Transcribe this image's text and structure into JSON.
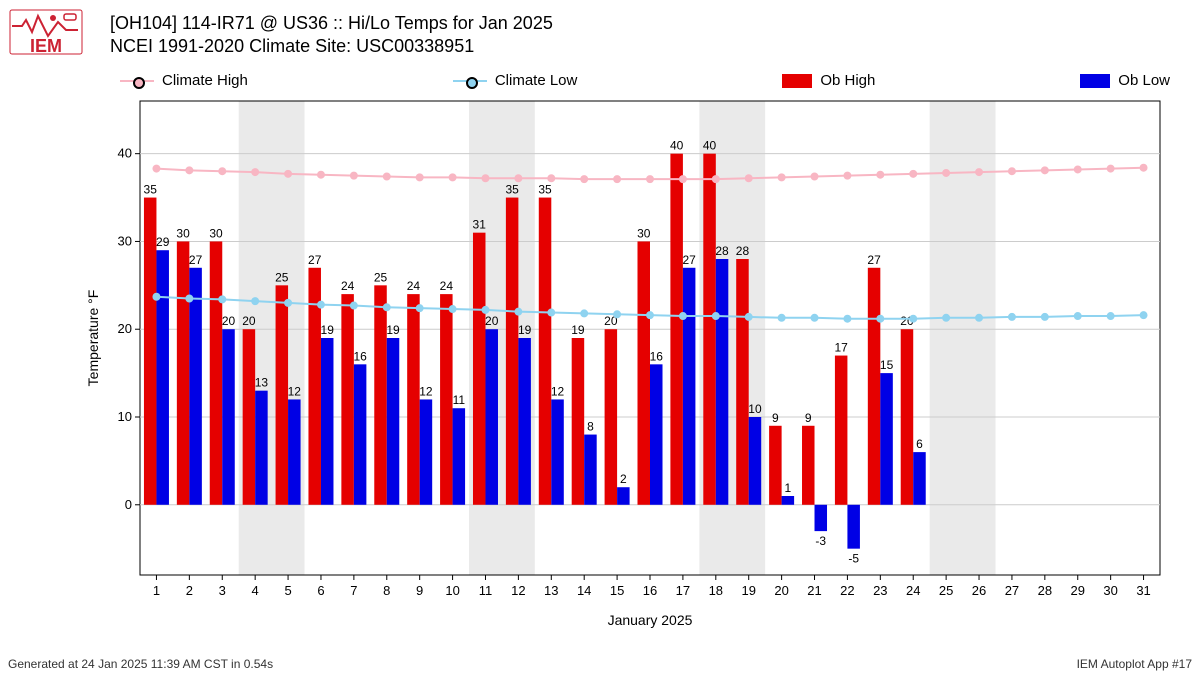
{
  "logo_text": "IEM",
  "title_line1": "[OH104] 114-IR71 @ US36 :: Hi/Lo Temps for Jan 2025",
  "title_line2": "NCEI 1991-2020 Climate Site: USC00338951",
  "footer_left": "Generated at 24 Jan 2025 11:39 AM CST in 0.54s",
  "footer_right": "IEM Autoplot App #17",
  "chart": {
    "type": "bar+line",
    "xlabel": "January 2025",
    "ylabel": "Temperature °F",
    "background_color": "#ffffff",
    "grid_color": "#cccccc",
    "weekend_band_color": "#eaeaea",
    "y": {
      "min": -8,
      "max": 46,
      "ticks": [
        0,
        10,
        20,
        30,
        40
      ]
    },
    "x": {
      "days": [
        1,
        2,
        3,
        4,
        5,
        6,
        7,
        8,
        9,
        10,
        11,
        12,
        13,
        14,
        15,
        16,
        17,
        18,
        19,
        20,
        21,
        22,
        23,
        24,
        25,
        26,
        27,
        28,
        29,
        30,
        31
      ]
    },
    "legend": {
      "climate_high": "Climate High",
      "climate_low": "Climate Low",
      "ob_high": "Ob High",
      "ob_low": "Ob Low"
    },
    "colors": {
      "climate_high": "#f8b6c3",
      "climate_low": "#8fd3f0",
      "ob_high": "#e50000",
      "ob_low": "#0000e5",
      "text": "#000000"
    },
    "bar_width": 0.38,
    "weekend_bands": [
      [
        4,
        5
      ],
      [
        11,
        12
      ],
      [
        18,
        19
      ],
      [
        25,
        26
      ]
    ],
    "data": [
      {
        "day": 1,
        "oh": 35,
        "ol": 29,
        "ch": 38.3,
        "cl": 23.7
      },
      {
        "day": 2,
        "oh": 30,
        "ol": 27,
        "ch": 38.1,
        "cl": 23.5
      },
      {
        "day": 3,
        "oh": 30,
        "ol": 20,
        "ch": 38.0,
        "cl": 23.4
      },
      {
        "day": 4,
        "oh": 20,
        "ol": 13,
        "ch": 37.9,
        "cl": 23.2
      },
      {
        "day": 5,
        "oh": 25,
        "ol": 12,
        "ch": 37.7,
        "cl": 23.0
      },
      {
        "day": 6,
        "oh": 27,
        "ol": 19,
        "ch": 37.6,
        "cl": 22.8
      },
      {
        "day": 7,
        "oh": 24,
        "ol": 16,
        "ch": 37.5,
        "cl": 22.7
      },
      {
        "day": 8,
        "oh": 25,
        "ol": 19,
        "ch": 37.4,
        "cl": 22.5
      },
      {
        "day": 9,
        "oh": 24,
        "ol": 12,
        "ch": 37.3,
        "cl": 22.4
      },
      {
        "day": 10,
        "oh": 24,
        "ol": 11,
        "ch": 37.3,
        "cl": 22.3
      },
      {
        "day": 11,
        "oh": 31,
        "ol": 20,
        "ch": 37.2,
        "cl": 22.2
      },
      {
        "day": 12,
        "oh": 35,
        "ol": 19,
        "ch": 37.2,
        "cl": 22.0
      },
      {
        "day": 13,
        "oh": 35,
        "ol": 12,
        "ch": 37.2,
        "cl": 21.9
      },
      {
        "day": 14,
        "oh": 19,
        "ol": 8,
        "ch": 37.1,
        "cl": 21.8
      },
      {
        "day": 15,
        "oh": 20,
        "ol": 2,
        "ch": 37.1,
        "cl": 21.7
      },
      {
        "day": 16,
        "oh": 30,
        "ol": 16,
        "ch": 37.1,
        "cl": 21.6
      },
      {
        "day": 17,
        "oh": 40,
        "ol": 27,
        "ch": 37.1,
        "cl": 21.5
      },
      {
        "day": 18,
        "oh": 40,
        "ol": 28,
        "ch": 37.1,
        "cl": 21.5
      },
      {
        "day": 19,
        "oh": 28,
        "ol": 10,
        "ch": 37.2,
        "cl": 21.4
      },
      {
        "day": 20,
        "oh": 9,
        "ol": 1,
        "ch": 37.3,
        "cl": 21.3
      },
      {
        "day": 21,
        "oh": 9,
        "ol": -3,
        "ch": 37.4,
        "cl": 21.3
      },
      {
        "day": 22,
        "oh": 17,
        "ol": -5,
        "ch": 37.5,
        "cl": 21.2
      },
      {
        "day": 23,
        "oh": 27,
        "ol": 15,
        "ch": 37.6,
        "cl": 21.2
      },
      {
        "day": 24,
        "oh": 20,
        "ol": 6,
        "ch": 37.7,
        "cl": 21.2
      },
      {
        "day": 25,
        "oh": null,
        "ol": null,
        "ch": 37.8,
        "cl": 21.3
      },
      {
        "day": 26,
        "oh": null,
        "ol": null,
        "ch": 37.9,
        "cl": 21.3
      },
      {
        "day": 27,
        "oh": null,
        "ol": null,
        "ch": 38.0,
        "cl": 21.4
      },
      {
        "day": 28,
        "oh": null,
        "ol": null,
        "ch": 38.1,
        "cl": 21.4
      },
      {
        "day": 29,
        "oh": null,
        "ol": null,
        "ch": 38.2,
        "cl": 21.5
      },
      {
        "day": 30,
        "oh": null,
        "ol": null,
        "ch": 38.3,
        "cl": 21.5
      },
      {
        "day": 31,
        "oh": null,
        "ol": null,
        "ch": 38.4,
        "cl": 21.6
      }
    ],
    "label_fontsize": 12,
    "tick_fontsize": 13,
    "axis_label_fontsize": 14
  }
}
